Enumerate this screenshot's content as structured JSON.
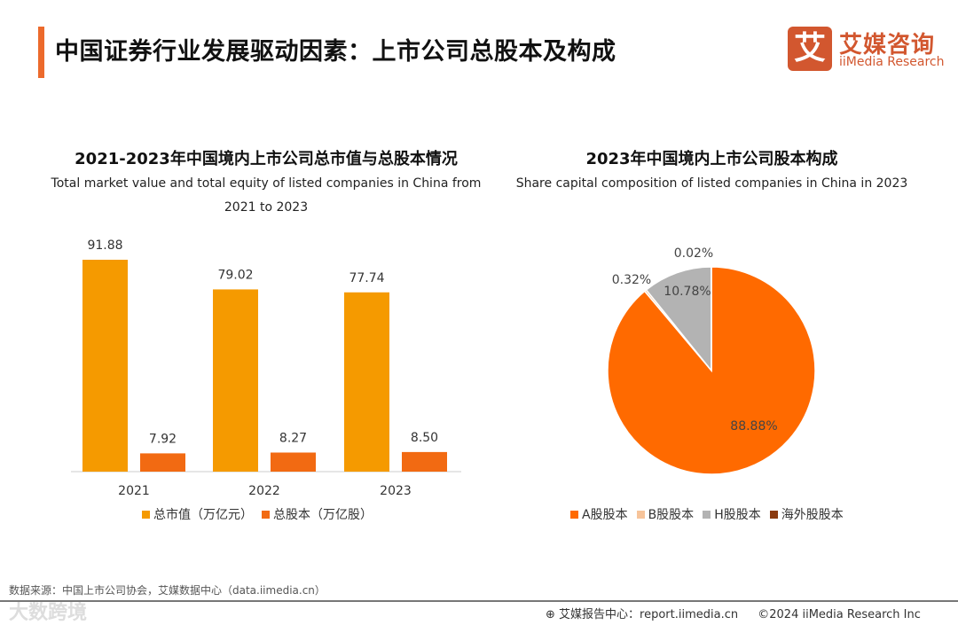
{
  "header": {
    "title": "中国证券行业发展驱动因素：上市公司总股本及构成",
    "logo_cn": "艾媒咨询",
    "logo_en": "iiMedia Research",
    "logo_mark": "艾"
  },
  "chart_data": [
    {
      "type": "bar",
      "title": "2021-2023年中国境内上市公司总市值与总股本情况",
      "subtitle": "Total market value and total equity of listed companies in China from 2021 to 2023",
      "categories": [
        "2021",
        "2022",
        "2023"
      ],
      "series": [
        {
          "name": "总市值（万亿元）",
          "color": "#f59a00",
          "values": [
            91.88,
            79.02,
            77.74
          ]
        },
        {
          "name": "总股本（万亿股）",
          "color": "#f26a12",
          "values": [
            7.92,
            8.27,
            8.5
          ]
        }
      ],
      "ylim": [
        0,
        100
      ],
      "legend": "bottom"
    },
    {
      "type": "pie",
      "title": "2023年中国境内上市公司股本构成",
      "subtitle": "Share capital composition of listed companies in China in 2023",
      "slices": [
        {
          "name": "A股股本",
          "value": 88.88,
          "label": "88.88%",
          "color": "#ff6a00"
        },
        {
          "name": "B股股本",
          "value": 0.32,
          "label": "0.32%",
          "color": "#f7c49a"
        },
        {
          "name": "H股股本",
          "value": 10.78,
          "label": "10.78%",
          "color": "#b3b3b3"
        },
        {
          "name": "海外股股本",
          "value": 0.02,
          "label": "0.02%",
          "color": "#8b3a0f"
        }
      ],
      "legend": "bottom"
    }
  ],
  "footer": {
    "source": "数据来源：中国上市公司协会，艾媒数据中心（data.iimedia.cn）",
    "report": "艾媒报告中心：report.iimedia.cn",
    "copyright": "©2024  iiMedia Research Inc",
    "watermark": "大数跨境"
  }
}
